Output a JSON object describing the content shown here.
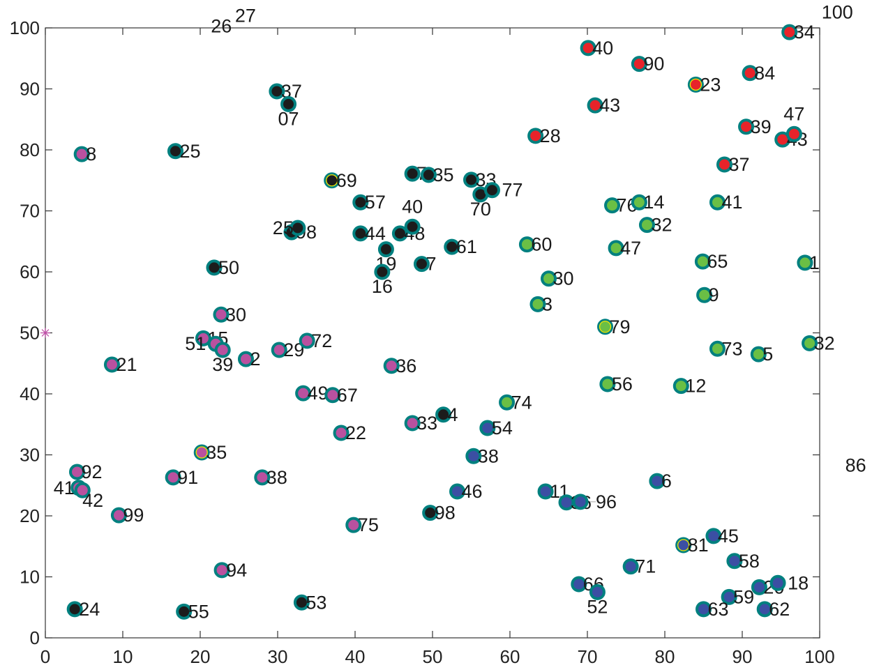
{
  "chart_data": {
    "type": "scatter",
    "title": "",
    "xlabel": "",
    "ylabel": "",
    "xlim": [
      0,
      100
    ],
    "ylim": [
      0,
      100
    ],
    "xticks": [
      "0",
      "10",
      "20",
      "30",
      "40",
      "50",
      "60",
      "70",
      "80",
      "90",
      "100"
    ],
    "yticks": [
      "0",
      "10",
      "20",
      "30",
      "40",
      "50",
      "60",
      "70",
      "80",
      "90",
      "100"
    ],
    "grid": false,
    "marker_edge_color": "#00807f",
    "highlight_ring_color": "#f2e600",
    "groups": {
      "black": "#1c1c1c",
      "magenta": "#b9519f",
      "red": "#e8232a",
      "green": "#6abf45",
      "blue": "#3b4fa3"
    },
    "points": [
      {
        "x": 29.9,
        "y": 89.6,
        "g": "black",
        "label": "37"
      },
      {
        "x": 31.4,
        "y": 87.5,
        "g": "black",
        "label": "07"
      },
      {
        "x": 16.8,
        "y": 79.8,
        "g": "black",
        "label": "25"
      },
      {
        "x": 37.0,
        "y": 75.0,
        "g": "black",
        "label": "69",
        "highlight": true
      },
      {
        "x": 40.7,
        "y": 71.4,
        "g": "black",
        "label": "57"
      },
      {
        "x": 47.4,
        "y": 76.1,
        "g": "black",
        "label": "7"
      },
      {
        "x": 49.5,
        "y": 75.9,
        "g": "black",
        "label": "35"
      },
      {
        "x": 55.0,
        "y": 75.1,
        "g": "black",
        "label": "33"
      },
      {
        "x": 56.2,
        "y": 72.7,
        "g": "black",
        "label": "70"
      },
      {
        "x": 57.7,
        "y": 73.4,
        "g": "black",
        "label": "77"
      },
      {
        "x": 31.8,
        "y": 66.5,
        "g": "black",
        "label": "98"
      },
      {
        "x": 32.6,
        "y": 67.2,
        "g": "black",
        "label": "25"
      },
      {
        "x": 40.7,
        "y": 66.3,
        "g": "black",
        "label": "44"
      },
      {
        "x": 45.8,
        "y": 66.3,
        "g": "black",
        "label": "48"
      },
      {
        "x": 47.4,
        "y": 67.4,
        "g": "black",
        "label": "40"
      },
      {
        "x": 44.0,
        "y": 63.7,
        "g": "black",
        "label": "19"
      },
      {
        "x": 52.5,
        "y": 64.1,
        "g": "black",
        "label": "61"
      },
      {
        "x": 48.6,
        "y": 61.3,
        "g": "black",
        "label": "7"
      },
      {
        "x": 43.5,
        "y": 60.0,
        "g": "black",
        "label": "16"
      },
      {
        "x": 21.8,
        "y": 60.7,
        "g": "black",
        "label": "50"
      },
      {
        "x": 51.4,
        "y": 36.6,
        "g": "black",
        "label": "4"
      },
      {
        "x": 49.7,
        "y": 20.5,
        "g": "black",
        "label": "98"
      },
      {
        "x": 3.8,
        "y": 4.7,
        "g": "black",
        "label": "24"
      },
      {
        "x": 17.9,
        "y": 4.3,
        "g": "black",
        "label": "55"
      },
      {
        "x": 33.1,
        "y": 5.8,
        "g": "black",
        "label": "53"
      },
      {
        "x": 4.7,
        "y": 79.3,
        "g": "magenta",
        "label": "8"
      },
      {
        "x": 22.7,
        "y": 53.0,
        "g": "magenta",
        "label": "30"
      },
      {
        "x": 20.4,
        "y": 49.1,
        "g": "magenta",
        "label": "15"
      },
      {
        "x": 22.0,
        "y": 48.2,
        "g": "magenta",
        "label": "51"
      },
      {
        "x": 22.9,
        "y": 47.2,
        "g": "magenta",
        "label": "39"
      },
      {
        "x": 25.9,
        "y": 45.7,
        "g": "magenta",
        "label": "2"
      },
      {
        "x": 30.2,
        "y": 47.2,
        "g": "magenta",
        "label": "29"
      },
      {
        "x": 33.8,
        "y": 48.7,
        "g": "magenta",
        "label": "72"
      },
      {
        "x": 8.6,
        "y": 44.8,
        "g": "magenta",
        "label": "21"
      },
      {
        "x": 44.7,
        "y": 44.6,
        "g": "magenta",
        "label": "36"
      },
      {
        "x": 33.3,
        "y": 40.1,
        "g": "magenta",
        "label": "49"
      },
      {
        "x": 37.1,
        "y": 39.8,
        "g": "magenta",
        "label": "67"
      },
      {
        "x": 47.4,
        "y": 35.2,
        "g": "magenta",
        "label": "33"
      },
      {
        "x": 38.2,
        "y": 33.6,
        "g": "magenta",
        "label": "22"
      },
      {
        "x": 20.2,
        "y": 30.4,
        "g": "magenta",
        "label": "35",
        "highlight": true
      },
      {
        "x": 4.1,
        "y": 27.2,
        "g": "magenta",
        "label": "92"
      },
      {
        "x": 16.5,
        "y": 26.3,
        "g": "magenta",
        "label": "91"
      },
      {
        "x": 28.0,
        "y": 26.3,
        "g": "magenta",
        "label": "38"
      },
      {
        "x": 4.3,
        "y": 24.6,
        "g": "magenta",
        "label": "41"
      },
      {
        "x": 4.8,
        "y": 24.2,
        "g": "magenta",
        "label": "42"
      },
      {
        "x": 9.5,
        "y": 20.1,
        "g": "magenta",
        "label": "99"
      },
      {
        "x": 39.8,
        "y": 18.5,
        "g": "magenta",
        "label": "75"
      },
      {
        "x": 22.8,
        "y": 11.1,
        "g": "magenta",
        "label": "94"
      },
      {
        "x": 70.1,
        "y": 96.7,
        "g": "red",
        "label": "40"
      },
      {
        "x": 76.7,
        "y": 94.1,
        "g": "red",
        "label": "90"
      },
      {
        "x": 84.0,
        "y": 90.7,
        "g": "red",
        "label": "23",
        "highlight": true
      },
      {
        "x": 91.0,
        "y": 92.6,
        "g": "red",
        "label": "84"
      },
      {
        "x": 96.1,
        "y": 99.3,
        "g": "red",
        "label": "34"
      },
      {
        "x": 71.0,
        "y": 87.3,
        "g": "red",
        "label": "43"
      },
      {
        "x": 63.3,
        "y": 82.3,
        "g": "red",
        "label": "28"
      },
      {
        "x": 90.5,
        "y": 83.8,
        "g": "red",
        "label": "39"
      },
      {
        "x": 95.2,
        "y": 81.7,
        "g": "red",
        "label": "43"
      },
      {
        "x": 96.7,
        "y": 82.6,
        "g": "red",
        "label": "47"
      },
      {
        "x": 87.7,
        "y": 77.6,
        "g": "red",
        "label": "37"
      },
      {
        "x": 73.2,
        "y": 70.9,
        "g": "green",
        "label": "76"
      },
      {
        "x": 76.7,
        "y": 71.4,
        "g": "green",
        "label": "14"
      },
      {
        "x": 86.8,
        "y": 71.4,
        "g": "green",
        "label": "41"
      },
      {
        "x": 77.7,
        "y": 67.7,
        "g": "green",
        "label": "32"
      },
      {
        "x": 62.2,
        "y": 64.5,
        "g": "green",
        "label": "60"
      },
      {
        "x": 73.7,
        "y": 63.9,
        "g": "green",
        "label": "47"
      },
      {
        "x": 84.9,
        "y": 61.7,
        "g": "green",
        "label": "65"
      },
      {
        "x": 98.1,
        "y": 61.5,
        "g": "green",
        "label": "1"
      },
      {
        "x": 65.0,
        "y": 58.9,
        "g": "green",
        "label": "30"
      },
      {
        "x": 63.6,
        "y": 54.7,
        "g": "green",
        "label": "3"
      },
      {
        "x": 85.1,
        "y": 56.2,
        "g": "green",
        "label": "9"
      },
      {
        "x": 72.3,
        "y": 51.0,
        "g": "green",
        "label": "79",
        "highlight": true
      },
      {
        "x": 86.8,
        "y": 47.4,
        "g": "green",
        "label": "73"
      },
      {
        "x": 92.1,
        "y": 46.5,
        "g": "green",
        "label": "5"
      },
      {
        "x": 98.7,
        "y": 48.3,
        "g": "green",
        "label": "32"
      },
      {
        "x": 72.6,
        "y": 41.6,
        "g": "green",
        "label": "56"
      },
      {
        "x": 82.1,
        "y": 41.3,
        "g": "green",
        "label": "12"
      },
      {
        "x": 59.6,
        "y": 38.6,
        "g": "green",
        "label": "74"
      },
      {
        "x": 57.1,
        "y": 34.4,
        "g": "blue",
        "label": "54"
      },
      {
        "x": 55.3,
        "y": 29.8,
        "g": "blue",
        "label": "38"
      },
      {
        "x": 53.2,
        "y": 24.0,
        "g": "blue",
        "label": "46"
      },
      {
        "x": 64.6,
        "y": 24.0,
        "g": "blue",
        "label": "11"
      },
      {
        "x": 67.3,
        "y": 22.2,
        "g": "blue",
        "label": "36"
      },
      {
        "x": 69.1,
        "y": 22.3,
        "g": "blue",
        "label": "96"
      },
      {
        "x": 79.0,
        "y": 25.7,
        "g": "blue",
        "label": "6"
      },
      {
        "x": 82.4,
        "y": 15.2,
        "g": "blue",
        "label": "81",
        "highlight": true
      },
      {
        "x": 86.3,
        "y": 16.7,
        "g": "blue",
        "label": "45"
      },
      {
        "x": 89.0,
        "y": 12.6,
        "g": "blue",
        "label": "58"
      },
      {
        "x": 75.6,
        "y": 11.7,
        "g": "blue",
        "label": "71"
      },
      {
        "x": 68.9,
        "y": 8.8,
        "g": "blue",
        "label": "66"
      },
      {
        "x": 71.3,
        "y": 7.5,
        "g": "blue",
        "label": "52"
      },
      {
        "x": 88.3,
        "y": 6.7,
        "g": "blue",
        "label": "59"
      },
      {
        "x": 92.2,
        "y": 8.3,
        "g": "blue",
        "label": "20"
      },
      {
        "x": 94.6,
        "y": 9.0,
        "g": "blue",
        "label": "18"
      },
      {
        "x": 85.0,
        "y": 4.7,
        "g": "blue",
        "label": "63"
      },
      {
        "x": 92.9,
        "y": 4.7,
        "g": "blue",
        "label": "62"
      }
    ],
    "star_marker": {
      "x": 0,
      "y": 50,
      "color": "#c050a8"
    },
    "annotations": [
      {
        "x": 24.5,
        "y": 102.0,
        "text": "27"
      },
      {
        "x": 24.8,
        "y": 100.3,
        "text": "26"
      },
      {
        "x": 104.3,
        "y": 102.6,
        "text": "100"
      },
      {
        "x": 103.3,
        "y": 28.3,
        "text": "86"
      }
    ]
  }
}
